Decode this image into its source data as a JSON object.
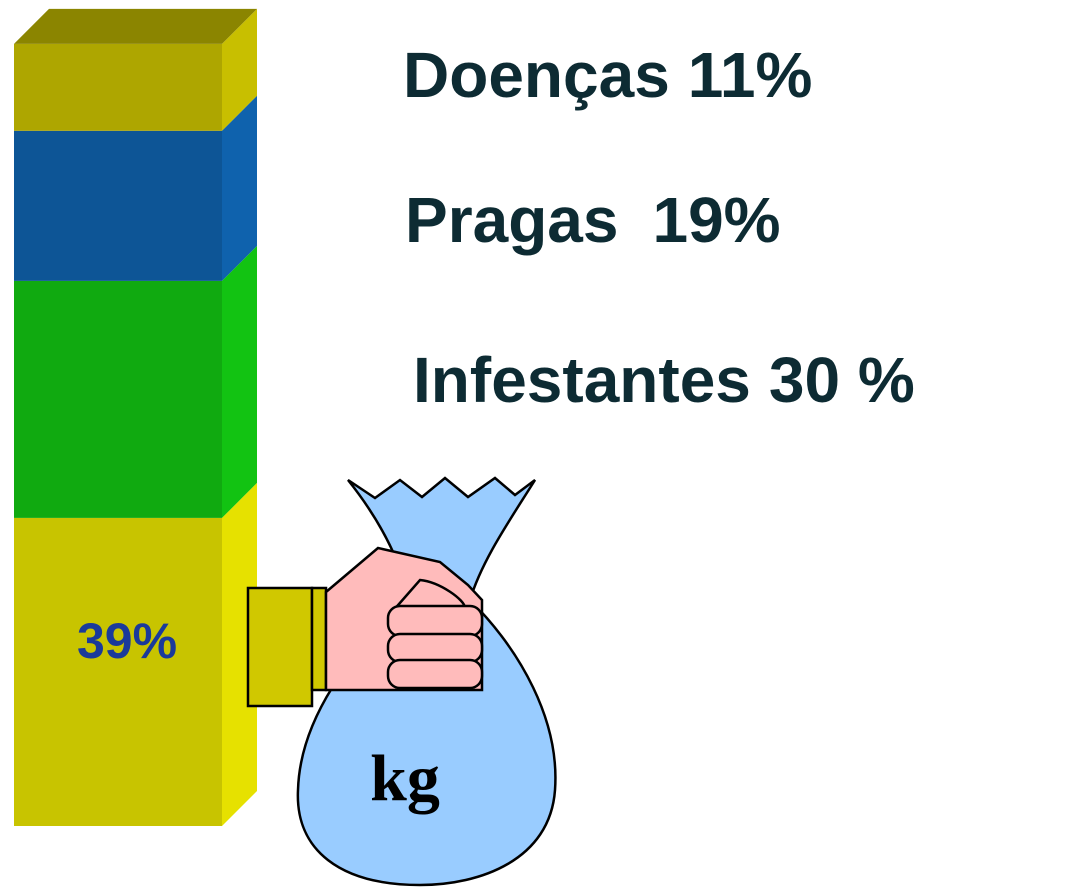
{
  "chart_data": {
    "type": "stacked-bar-3d",
    "ylim": [
      0,
      100
    ],
    "series": [
      {
        "color": "#c8c400",
        "values": [
          39
        ],
        "value_labels": [
          "39%"
        ]
      },
      {
        "name": "Infestantes",
        "color": "#10aa10",
        "values": [
          30
        ],
        "value_labels": [
          "30 %"
        ]
      },
      {
        "name": "Pragas",
        "color": "#0d5596",
        "values": [
          19
        ],
        "value_labels": [
          "19%"
        ]
      },
      {
        "name": "Doenças",
        "color": "#aea600",
        "values": [
          11
        ],
        "value_labels": [
          "11%"
        ]
      }
    ],
    "annotation": "kg"
  }
}
